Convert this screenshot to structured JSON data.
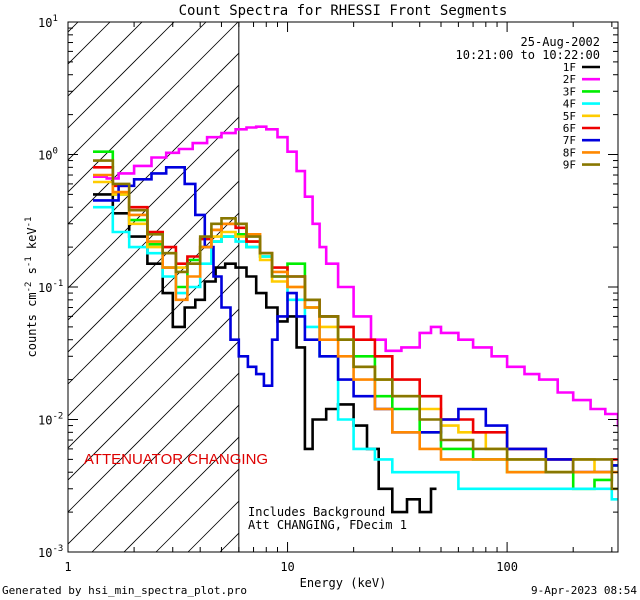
{
  "chart_data": {
    "type": "line",
    "title": "Count Spectra for RHESSI Front Segments",
    "xlabel": "Energy (keV)",
    "ylabel_main": "counts cm",
    "ylabel_sup1": "-2",
    "ylabel_mid": " s",
    "ylabel_sup2": "-1",
    "ylabel_end": " keV",
    "ylabel_sup3": "-1",
    "xscale": "log",
    "yscale": "log",
    "xlim": [
      1,
      320
    ],
    "ylim": [
      0.001,
      10
    ],
    "x_ticks": [
      {
        "value": 1,
        "label": "1"
      },
      {
        "value": 10,
        "label": "10"
      },
      {
        "value": 100,
        "label": "100"
      }
    ],
    "y_ticks": [
      {
        "value": 0.001,
        "base": "10",
        "exp": "-3"
      },
      {
        "value": 0.01,
        "base": "10",
        "exp": "-2"
      },
      {
        "value": 0.1,
        "base": "10",
        "exp": "-1"
      },
      {
        "value": 1,
        "base": "10",
        "exp": "0"
      },
      {
        "value": 10,
        "base": "10",
        "exp": "1"
      }
    ],
    "date": "25-Aug-2002",
    "time_range": "10:21:00 to 10:22:00",
    "hatch_region_xmax": 6,
    "attenuator_label": "ATTENUATOR CHANGING",
    "note_line1": "Includes Background",
    "note_line2": "Att CHANGING, FDecim 1",
    "footer_left": "Generated by hsi_min_spectra_plot.pro",
    "footer_right": "9-Apr-2023 08:54",
    "series": [
      {
        "name": "1F",
        "color": "#000000",
        "points": [
          [
            1.3,
            0.5
          ],
          [
            1.6,
            0.36
          ],
          [
            1.9,
            0.24
          ],
          [
            2.3,
            0.15
          ],
          [
            2.7,
            0.09
          ],
          [
            3.0,
            0.05
          ],
          [
            3.4,
            0.07
          ],
          [
            3.8,
            0.08
          ],
          [
            4.2,
            0.11
          ],
          [
            4.7,
            0.14
          ],
          [
            5.2,
            0.15
          ],
          [
            5.8,
            0.14
          ],
          [
            6.5,
            0.12
          ],
          [
            7.2,
            0.09
          ],
          [
            8.0,
            0.07
          ],
          [
            9.0,
            0.055
          ],
          [
            10.0,
            0.06
          ],
          [
            11.0,
            0.035
          ],
          [
            12.0,
            0.006
          ],
          [
            13.0,
            0.01
          ],
          [
            15.0,
            0.012
          ],
          [
            17.0,
            0.013
          ],
          [
            20.0,
            0.009
          ],
          [
            23.0,
            0.006
          ],
          [
            26.0,
            0.003
          ],
          [
            30.0,
            0.002
          ],
          [
            35.0,
            0.0025
          ],
          [
            40.0,
            0.002
          ],
          [
            45.0,
            0.003
          ]
        ]
      },
      {
        "name": "2F",
        "color": "#ff00ff",
        "points": [
          [
            1.3,
            0.68
          ],
          [
            1.5,
            0.66
          ],
          [
            1.7,
            0.72
          ],
          [
            2.0,
            0.82
          ],
          [
            2.4,
            0.95
          ],
          [
            2.8,
            1.03
          ],
          [
            3.2,
            1.1
          ],
          [
            3.7,
            1.22
          ],
          [
            4.3,
            1.35
          ],
          [
            5.0,
            1.45
          ],
          [
            5.8,
            1.55
          ],
          [
            6.5,
            1.6
          ],
          [
            7.2,
            1.62
          ],
          [
            8.0,
            1.55
          ],
          [
            9.0,
            1.35
          ],
          [
            10.0,
            1.05
          ],
          [
            11.0,
            0.75
          ],
          [
            12.0,
            0.48
          ],
          [
            13.0,
            0.3
          ],
          [
            14.0,
            0.2
          ],
          [
            15.0,
            0.15
          ],
          [
            17.0,
            0.1
          ],
          [
            20.0,
            0.06
          ],
          [
            24.0,
            0.04
          ],
          [
            28.0,
            0.033
          ],
          [
            33.0,
            0.035
          ],
          [
            40.0,
            0.045
          ],
          [
            45.0,
            0.05
          ],
          [
            50.0,
            0.045
          ],
          [
            60.0,
            0.04
          ],
          [
            70.0,
            0.035
          ],
          [
            85.0,
            0.03
          ],
          [
            100.0,
            0.025
          ],
          [
            120.0,
            0.022
          ],
          [
            140.0,
            0.02
          ],
          [
            170.0,
            0.016
          ],
          [
            200.0,
            0.014
          ],
          [
            240.0,
            0.012
          ],
          [
            280.0,
            0.011
          ],
          [
            320.0,
            0.009
          ]
        ]
      },
      {
        "name": "3F",
        "color": "#00ee00",
        "points": [
          [
            1.3,
            1.05
          ],
          [
            1.6,
            0.5
          ],
          [
            1.9,
            0.32
          ],
          [
            2.3,
            0.21
          ],
          [
            2.7,
            0.14
          ],
          [
            3.1,
            0.1
          ],
          [
            3.5,
            0.16
          ],
          [
            4.0,
            0.2
          ],
          [
            4.5,
            0.22
          ],
          [
            5.0,
            0.24
          ],
          [
            5.8,
            0.25
          ],
          [
            6.5,
            0.2
          ],
          [
            7.5,
            0.17
          ],
          [
            8.5,
            0.12
          ],
          [
            10.0,
            0.15
          ],
          [
            12.0,
            0.07
          ],
          [
            14.0,
            0.06
          ],
          [
            17.0,
            0.04
          ],
          [
            20.0,
            0.03
          ],
          [
            25.0,
            0.015
          ],
          [
            30.0,
            0.012
          ],
          [
            40.0,
            0.008
          ],
          [
            50.0,
            0.006
          ],
          [
            70.0,
            0.005
          ],
          [
            100.0,
            0.004
          ],
          [
            150.0,
            0.004
          ],
          [
            200.0,
            0.003
          ],
          [
            250.0,
            0.0035
          ],
          [
            300.0,
            0.0045
          ]
        ]
      },
      {
        "name": "4F",
        "color": "#00ffff",
        "points": [
          [
            1.3,
            0.4
          ],
          [
            1.6,
            0.26
          ],
          [
            1.9,
            0.2
          ],
          [
            2.3,
            0.18
          ],
          [
            2.7,
            0.12
          ],
          [
            3.1,
            0.09
          ],
          [
            3.5,
            0.1
          ],
          [
            4.0,
            0.15
          ],
          [
            4.5,
            0.22
          ],
          [
            5.0,
            0.24
          ],
          [
            5.8,
            0.22
          ],
          [
            6.5,
            0.2
          ],
          [
            7.5,
            0.17
          ],
          [
            8.5,
            0.12
          ],
          [
            10.0,
            0.08
          ],
          [
            12.0,
            0.05
          ],
          [
            14.0,
            0.03
          ],
          [
            17.0,
            0.01
          ],
          [
            20.0,
            0.006
          ],
          [
            25.0,
            0.005
          ],
          [
            30.0,
            0.004
          ],
          [
            40.0,
            0.004
          ],
          [
            60.0,
            0.003
          ],
          [
            80.0,
            0.003
          ],
          [
            120.0,
            0.003
          ],
          [
            200.0,
            0.003
          ],
          [
            300.0,
            0.0025
          ]
        ]
      },
      {
        "name": "5F",
        "color": "#ffcc00",
        "points": [
          [
            1.3,
            0.62
          ],
          [
            1.6,
            0.5
          ],
          [
            1.9,
            0.3
          ],
          [
            2.3,
            0.2
          ],
          [
            2.7,
            0.18
          ],
          [
            3.1,
            0.14
          ],
          [
            3.5,
            0.15
          ],
          [
            4.0,
            0.2
          ],
          [
            4.5,
            0.24
          ],
          [
            5.0,
            0.26
          ],
          [
            5.8,
            0.24
          ],
          [
            6.5,
            0.22
          ],
          [
            7.5,
            0.16
          ],
          [
            8.5,
            0.11
          ],
          [
            10.0,
            0.1
          ],
          [
            12.0,
            0.07
          ],
          [
            14.0,
            0.05
          ],
          [
            17.0,
            0.04
          ],
          [
            20.0,
            0.025
          ],
          [
            25.0,
            0.02
          ],
          [
            30.0,
            0.015
          ],
          [
            40.0,
            0.012
          ],
          [
            50.0,
            0.009
          ],
          [
            60.0,
            0.008
          ],
          [
            80.0,
            0.006
          ],
          [
            100.0,
            0.005
          ],
          [
            150.0,
            0.004
          ],
          [
            200.0,
            0.005
          ],
          [
            250.0,
            0.004
          ],
          [
            300.0,
            0.004
          ]
        ]
      },
      {
        "name": "6F",
        "color": "#ee0000",
        "points": [
          [
            1.3,
            0.8
          ],
          [
            1.6,
            0.58
          ],
          [
            1.9,
            0.4
          ],
          [
            2.3,
            0.26
          ],
          [
            2.7,
            0.2
          ],
          [
            3.1,
            0.15
          ],
          [
            3.5,
            0.17
          ],
          [
            4.0,
            0.23
          ],
          [
            4.5,
            0.27
          ],
          [
            5.0,
            0.3
          ],
          [
            5.8,
            0.28
          ],
          [
            6.5,
            0.22
          ],
          [
            7.5,
            0.18
          ],
          [
            8.5,
            0.14
          ],
          [
            10.0,
            0.12
          ],
          [
            12.0,
            0.08
          ],
          [
            14.0,
            0.06
          ],
          [
            17.0,
            0.05
          ],
          [
            20.0,
            0.04
          ],
          [
            25.0,
            0.03
          ],
          [
            30.0,
            0.02
          ],
          [
            40.0,
            0.015
          ],
          [
            50.0,
            0.01
          ],
          [
            70.0,
            0.008
          ],
          [
            100.0,
            0.006
          ],
          [
            150.0,
            0.005
          ],
          [
            200.0,
            0.004
          ],
          [
            300.0,
            0.005
          ]
        ]
      },
      {
        "name": "7F",
        "color": "#0000dd",
        "points": [
          [
            1.3,
            0.45
          ],
          [
            1.5,
            0.45
          ],
          [
            1.7,
            0.58
          ],
          [
            2.0,
            0.65
          ],
          [
            2.4,
            0.72
          ],
          [
            2.8,
            0.8
          ],
          [
            3.1,
            0.8
          ],
          [
            3.4,
            0.6
          ],
          [
            3.8,
            0.35
          ],
          [
            4.2,
            0.2
          ],
          [
            4.6,
            0.12
          ],
          [
            5.0,
            0.07
          ],
          [
            5.5,
            0.04
          ],
          [
            6.0,
            0.03
          ],
          [
            6.6,
            0.025
          ],
          [
            7.2,
            0.022
          ],
          [
            7.8,
            0.018
          ],
          [
            8.5,
            0.04
          ],
          [
            9.0,
            0.06
          ],
          [
            10.0,
            0.09
          ],
          [
            11.0,
            0.06
          ],
          [
            12.0,
            0.04
          ],
          [
            14.0,
            0.03
          ],
          [
            17.0,
            0.02
          ],
          [
            20.0,
            0.015
          ],
          [
            25.0,
            0.012
          ],
          [
            30.0,
            0.008
          ],
          [
            40.0,
            0.008
          ],
          [
            50.0,
            0.01
          ],
          [
            60.0,
            0.012
          ],
          [
            80.0,
            0.009
          ],
          [
            100.0,
            0.006
          ],
          [
            150.0,
            0.005
          ],
          [
            200.0,
            0.004
          ],
          [
            300.0,
            0.0045
          ]
        ]
      },
      {
        "name": "8F",
        "color": "#ff8800",
        "points": [
          [
            1.3,
            0.7
          ],
          [
            1.6,
            0.52
          ],
          [
            1.9,
            0.35
          ],
          [
            2.3,
            0.22
          ],
          [
            2.7,
            0.14
          ],
          [
            3.1,
            0.08
          ],
          [
            3.5,
            0.12
          ],
          [
            4.0,
            0.2
          ],
          [
            4.5,
            0.27
          ],
          [
            5.0,
            0.3
          ],
          [
            5.8,
            0.3
          ],
          [
            6.5,
            0.25
          ],
          [
            7.5,
            0.18
          ],
          [
            8.5,
            0.13
          ],
          [
            10.0,
            0.1
          ],
          [
            12.0,
            0.07
          ],
          [
            14.0,
            0.04
          ],
          [
            17.0,
            0.03
          ],
          [
            20.0,
            0.02
          ],
          [
            25.0,
            0.012
          ],
          [
            30.0,
            0.008
          ],
          [
            40.0,
            0.006
          ],
          [
            50.0,
            0.005
          ],
          [
            70.0,
            0.005
          ],
          [
            100.0,
            0.004
          ],
          [
            150.0,
            0.004
          ],
          [
            200.0,
            0.004
          ],
          [
            300.0,
            0.004
          ]
        ]
      },
      {
        "name": "9F",
        "color": "#887700",
        "points": [
          [
            1.3,
            0.9
          ],
          [
            1.6,
            0.6
          ],
          [
            1.9,
            0.38
          ],
          [
            2.3,
            0.25
          ],
          [
            2.7,
            0.18
          ],
          [
            3.1,
            0.13
          ],
          [
            3.5,
            0.15
          ],
          [
            4.0,
            0.24
          ],
          [
            4.5,
            0.3
          ],
          [
            5.0,
            0.33
          ],
          [
            5.8,
            0.3
          ],
          [
            6.5,
            0.24
          ],
          [
            7.5,
            0.18
          ],
          [
            8.5,
            0.12
          ],
          [
            10.0,
            0.12
          ],
          [
            12.0,
            0.08
          ],
          [
            14.0,
            0.06
          ],
          [
            17.0,
            0.04
          ],
          [
            20.0,
            0.025
          ],
          [
            25.0,
            0.02
          ],
          [
            30.0,
            0.015
          ],
          [
            40.0,
            0.01
          ],
          [
            50.0,
            0.007
          ],
          [
            70.0,
            0.006
          ],
          [
            100.0,
            0.005
          ],
          [
            150.0,
            0.004
          ],
          [
            200.0,
            0.005
          ],
          [
            300.0,
            0.003
          ]
        ]
      }
    ]
  }
}
